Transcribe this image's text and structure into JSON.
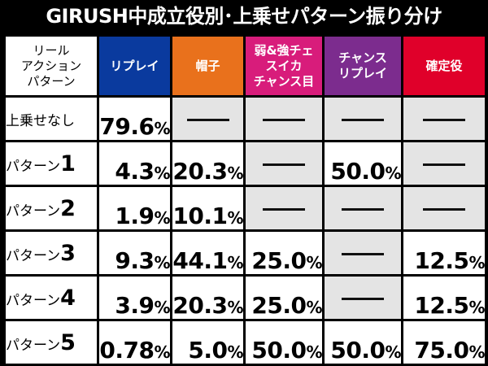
{
  "title": "GIRUSH中成立役別･上乗せパターン振り分け",
  "colors": {
    "replay": "#0a3a9e",
    "hat": "#e9711c",
    "weak_strong": "#d81c7b",
    "chance_replay": "#7c2c8e",
    "confirmed": "#e0002a",
    "empty_cell": "#e4e4e4"
  },
  "header": {
    "corner": "リール\nアクション\nパターン",
    "columns": [
      "リプレイ",
      "帽子",
      "弱&強チェ\nスイカ\nチャンス目",
      "チャンス\nリプレイ",
      "確定役"
    ]
  },
  "dash_icon": "horizontal-dash",
  "rows": [
    {
      "label": "上乗せなし",
      "label_num": "",
      "cells": [
        {
          "num": "79.6",
          "pct": "%"
        },
        null,
        null,
        null,
        null
      ]
    },
    {
      "label": "パターン",
      "label_num": "1",
      "cells": [
        {
          "num": "4.3",
          "pct": "%"
        },
        {
          "num": "20.3",
          "pct": "%"
        },
        null,
        {
          "num": "50.0",
          "pct": "%"
        },
        null
      ]
    },
    {
      "label": "パターン",
      "label_num": "2",
      "cells": [
        {
          "num": "1.9",
          "pct": "%"
        },
        {
          "num": "10.1",
          "pct": "%"
        },
        null,
        null,
        null
      ]
    },
    {
      "label": "パターン",
      "label_num": "3",
      "cells": [
        {
          "num": "9.3",
          "pct": "%"
        },
        {
          "num": "44.1",
          "pct": "%"
        },
        {
          "num": "25.0",
          "pct": "%"
        },
        null,
        {
          "num": "12.5",
          "pct": "%"
        }
      ]
    },
    {
      "label": "パターン",
      "label_num": "4",
      "cells": [
        {
          "num": "3.9",
          "pct": "%"
        },
        {
          "num": "20.3",
          "pct": "%"
        },
        {
          "num": "25.0",
          "pct": "%"
        },
        null,
        {
          "num": "12.5",
          "pct": "%"
        }
      ]
    },
    {
      "label": "パターン",
      "label_num": "5",
      "cells": [
        {
          "num": "0.78",
          "pct": "%"
        },
        {
          "num": "5.0",
          "pct": "%"
        },
        {
          "num": "50.0",
          "pct": "%"
        },
        {
          "num": "50.0",
          "pct": "%"
        },
        {
          "num": "75.0",
          "pct": "%"
        }
      ]
    }
  ]
}
